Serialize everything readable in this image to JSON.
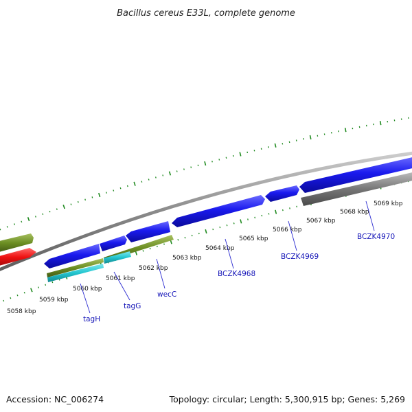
{
  "title": "Bacillus cereus E33L, complete genome",
  "footer": {
    "accession": "Accession: NC_006274",
    "summary": "Topology: circular; Length: 5,300,915 bp; Genes: 5,269"
  },
  "kbp_labels": [
    "5058 kbp",
    "5059 kbp",
    "5060 kbp",
    "5061 kbp",
    "5062 kbp",
    "5063 kbp",
    "5064 kbp",
    "5065 kbp",
    "5066 kbp",
    "5067 kbp",
    "5068 kbp",
    "5069 kbp"
  ],
  "gene_labels": [
    "tagH",
    "tagG",
    "wecC",
    "BCZK4968",
    "BCZK4969",
    "BCZK4970"
  ],
  "colors": {
    "cds_forward": "#1a1aee",
    "cds_olive": "#6b8e23",
    "cds_cyan": "#22c5cf",
    "cds_red": "#ee1111",
    "cds_gray": "#777777",
    "backbone": "#8a8a8a",
    "ticks": "#1f8a1f",
    "label": "#1515b8"
  }
}
